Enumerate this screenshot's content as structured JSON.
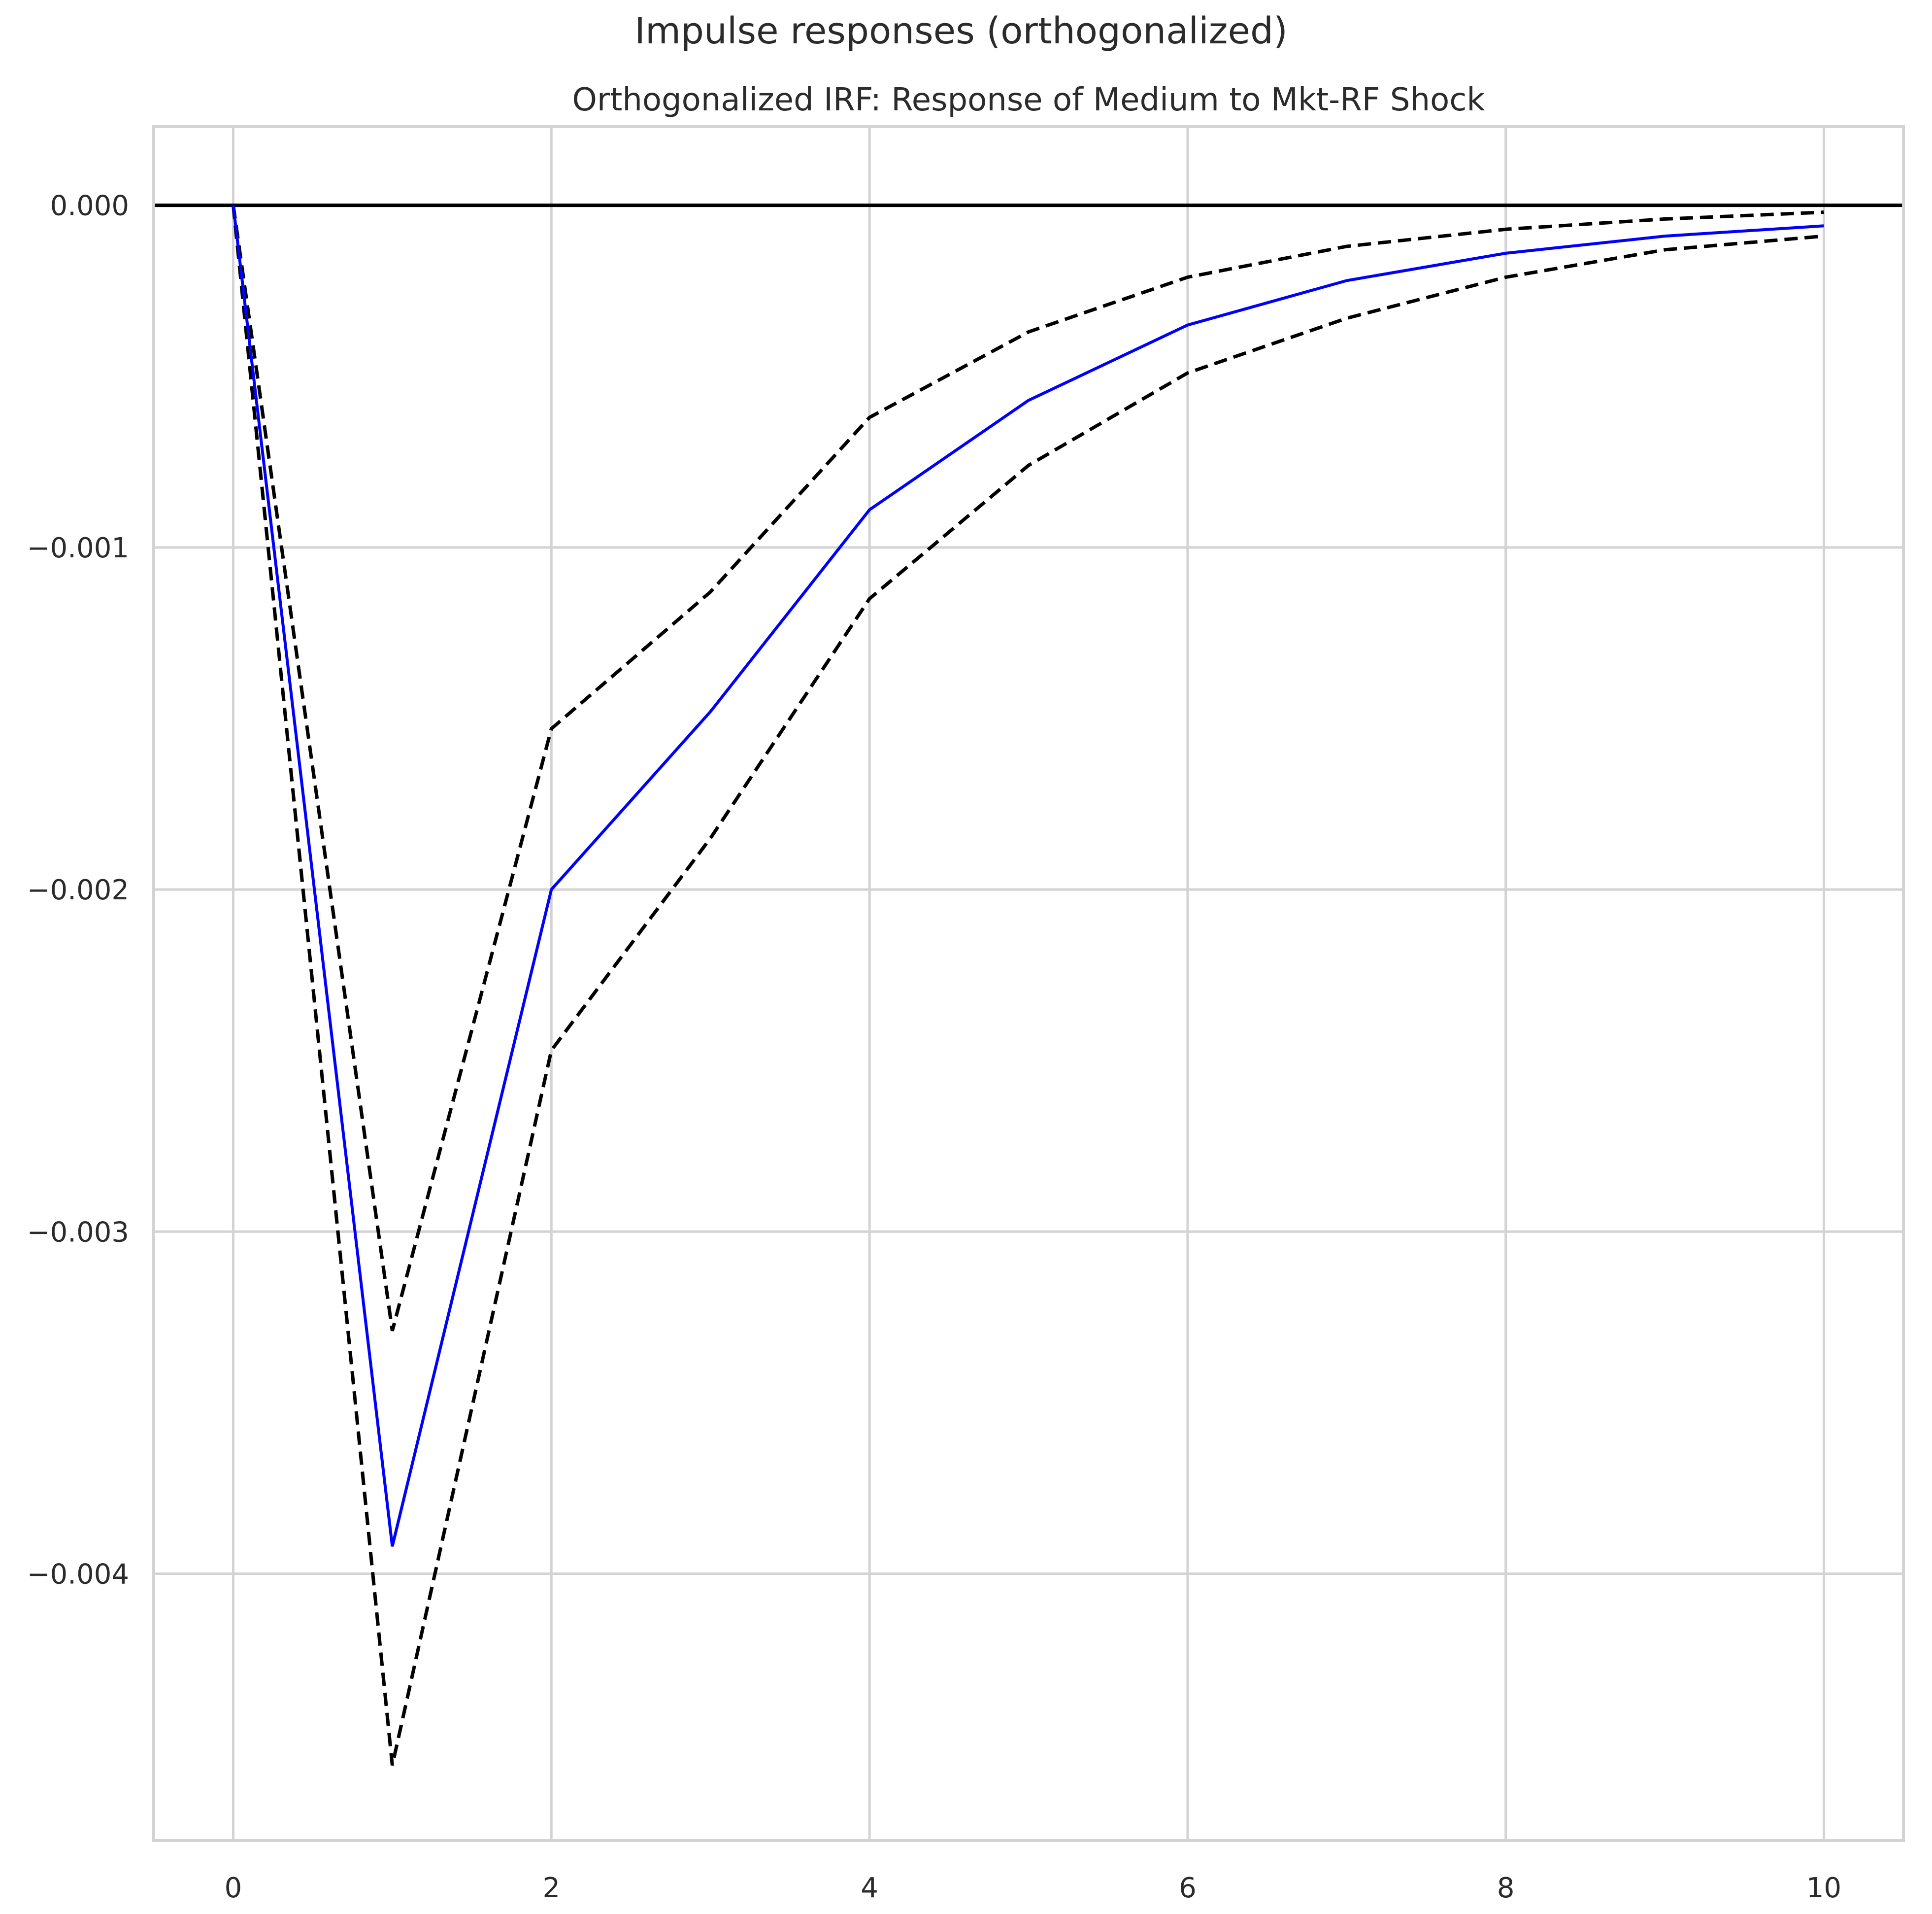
{
  "figure": {
    "suptitle": "Impulse responses (orthogonalized)"
  },
  "chart_data": {
    "type": "line",
    "title": "Orthogonalized IRF: Response of Medium to Mkt-RF Shock",
    "xlabel": "",
    "ylabel": "",
    "x": [
      0,
      1,
      2,
      3,
      4,
      5,
      6,
      7,
      8,
      9,
      10
    ],
    "xlim": [
      -0.5,
      10.5
    ],
    "ylim": [
      -0.00478,
      0.00023
    ],
    "x_ticks": [
      0,
      2,
      4,
      6,
      8,
      10
    ],
    "x_tick_labels": [
      "0",
      "2",
      "4",
      "6",
      "8",
      "10"
    ],
    "y_ticks": [
      0.0,
      -0.001,
      -0.002,
      -0.003,
      -0.004
    ],
    "y_tick_labels": [
      "0.000",
      "−0.001",
      "−0.002",
      "−0.003",
      "−0.004"
    ],
    "grid": true,
    "zero_line": 0.0,
    "series": [
      {
        "role": "irf",
        "style": "solid",
        "color": "#0000ff",
        "values": [
          0.0,
          -0.00392,
          -0.002,
          -0.00148,
          -0.00089,
          -0.00057,
          -0.00035,
          -0.00022,
          -0.00014,
          -9e-05,
          -6e-05
        ]
      },
      {
        "role": "upper-band",
        "style": "dashed",
        "color": "#000000",
        "values": [
          0.0,
          -0.00329,
          -0.00153,
          -0.00113,
          -0.00062,
          -0.00037,
          -0.00021,
          -0.00012,
          -7e-05,
          -4e-05,
          -2e-05
        ]
      },
      {
        "role": "lower-band",
        "style": "dashed",
        "color": "#000000",
        "values": [
          0.0,
          -0.00456,
          -0.00247,
          -0.00185,
          -0.00115,
          -0.00076,
          -0.00049,
          -0.00033,
          -0.00021,
          -0.00013,
          -9e-05
        ]
      }
    ]
  }
}
